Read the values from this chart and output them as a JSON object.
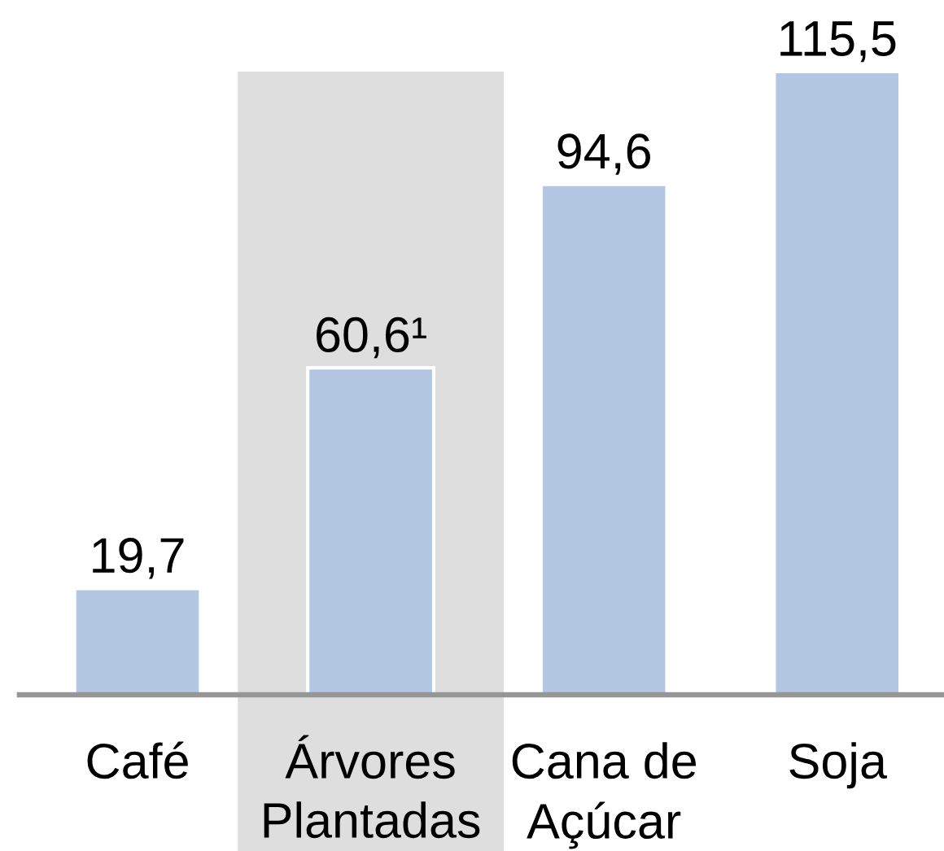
{
  "chart_data": {
    "type": "bar",
    "categories": [
      "Café",
      "Árvores\nPlantadas",
      "Cana de\nAçúcar",
      "Soja"
    ],
    "values": [
      19.7,
      60.6,
      94.6,
      115.5
    ],
    "color": "#b3c6e2",
    "value_labels": [
      "19,7",
      "60,6¹",
      "94,6",
      "115,5"
    ],
    "bands": [
      {
        "axis": "x",
        "from": "Árvores\nPlantadas",
        "to": "Árvores\nPlantadas",
        "color": "#dedede"
      }
    ],
    "tick_labels": "x"
  }
}
